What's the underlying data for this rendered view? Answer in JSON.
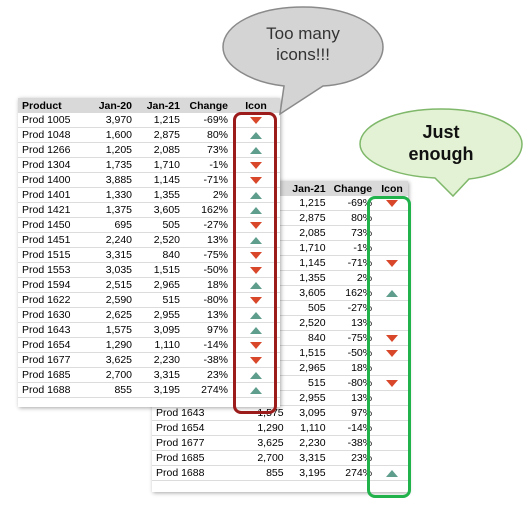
{
  "table_front": {
    "columns": [
      "Product",
      "Jan-20",
      "Jan-21",
      "Change",
      "Icon"
    ],
    "rows": [
      {
        "product": "Prod 1005",
        "jan20": "3,970",
        "jan21": "1,215",
        "change": "-69%",
        "icon": "down"
      },
      {
        "product": "Prod 1048",
        "jan20": "1,600",
        "jan21": "2,875",
        "change": "80%",
        "icon": "up"
      },
      {
        "product": "Prod 1266",
        "jan20": "1,205",
        "jan21": "2,085",
        "change": "73%",
        "icon": "up"
      },
      {
        "product": "Prod 1304",
        "jan20": "1,735",
        "jan21": "1,710",
        "change": "-1%",
        "icon": "down"
      },
      {
        "product": "Prod 1400",
        "jan20": "3,885",
        "jan21": "1,145",
        "change": "-71%",
        "icon": "down"
      },
      {
        "product": "Prod 1401",
        "jan20": "1,330",
        "jan21": "1,355",
        "change": "2%",
        "icon": "up"
      },
      {
        "product": "Prod 1421",
        "jan20": "1,375",
        "jan21": "3,605",
        "change": "162%",
        "icon": "up"
      },
      {
        "product": "Prod 1450",
        "jan20": "695",
        "jan21": "505",
        "change": "-27%",
        "icon": "down"
      },
      {
        "product": "Prod 1451",
        "jan20": "2,240",
        "jan21": "2,520",
        "change": "13%",
        "icon": "up"
      },
      {
        "product": "Prod 1515",
        "jan20": "3,315",
        "jan21": "840",
        "change": "-75%",
        "icon": "down"
      },
      {
        "product": "Prod 1553",
        "jan20": "3,035",
        "jan21": "1,515",
        "change": "-50%",
        "icon": "down"
      },
      {
        "product": "Prod 1594",
        "jan20": "2,515",
        "jan21": "2,965",
        "change": "18%",
        "icon": "up"
      },
      {
        "product": "Prod 1622",
        "jan20": "2,590",
        "jan21": "515",
        "change": "-80%",
        "icon": "down"
      },
      {
        "product": "Prod 1630",
        "jan20": "2,625",
        "jan21": "2,955",
        "change": "13%",
        "icon": "up"
      },
      {
        "product": "Prod 1643",
        "jan20": "1,575",
        "jan21": "3,095",
        "change": "97%",
        "icon": "up"
      },
      {
        "product": "Prod 1654",
        "jan20": "1,290",
        "jan21": "1,110",
        "change": "-14%",
        "icon": "down"
      },
      {
        "product": "Prod 1677",
        "jan20": "3,625",
        "jan21": "2,230",
        "change": "-38%",
        "icon": "down"
      },
      {
        "product": "Prod 1685",
        "jan20": "2,700",
        "jan21": "3,315",
        "change": "23%",
        "icon": "up"
      },
      {
        "product": "Prod 1688",
        "jan20": "855",
        "jan21": "3,195",
        "change": "274%",
        "icon": "up"
      }
    ]
  },
  "table_back": {
    "columns": [
      "Jan-21",
      "Change",
      "Icon"
    ],
    "rows_top": [
      {
        "jan21": "1,215",
        "change": "-69%",
        "icon": "down"
      },
      {
        "jan21": "2,875",
        "change": "80%",
        "icon": ""
      },
      {
        "jan21": "2,085",
        "change": "73%",
        "icon": ""
      },
      {
        "jan21": "1,710",
        "change": "-1%",
        "icon": ""
      },
      {
        "jan21": "1,145",
        "change": "-71%",
        "icon": "down"
      },
      {
        "jan21": "1,355",
        "change": "2%",
        "icon": ""
      },
      {
        "jan21": "3,605",
        "change": "162%",
        "icon": "up"
      },
      {
        "jan21": "505",
        "change": "-27%",
        "icon": ""
      },
      {
        "jan21": "2,520",
        "change": "13%",
        "icon": ""
      },
      {
        "jan21": "840",
        "change": "-75%",
        "icon": "down"
      },
      {
        "jan21": "1,515",
        "change": "-50%",
        "icon": "down"
      },
      {
        "jan21": "2,965",
        "change": "18%",
        "icon": ""
      },
      {
        "jan21": "515",
        "change": "-80%",
        "icon": "down"
      },
      {
        "jan21": "2,955",
        "change": "13%",
        "icon": ""
      }
    ],
    "rows_full": [
      {
        "product": "Prod 1643",
        "jan20": "1,575",
        "jan21": "3,095",
        "change": "97%",
        "icon": ""
      },
      {
        "product": "Prod 1654",
        "jan20": "1,290",
        "jan21": "1,110",
        "change": "-14%",
        "icon": ""
      },
      {
        "product": "Prod 1677",
        "jan20": "3,625",
        "jan21": "2,230",
        "change": "-38%",
        "icon": ""
      },
      {
        "product": "Prod 1685",
        "jan20": "2,700",
        "jan21": "3,315",
        "change": "23%",
        "icon": ""
      },
      {
        "product": "Prod 1688",
        "jan20": "855",
        "jan21": "3,195",
        "change": "274%",
        "icon": "up"
      }
    ]
  },
  "bubble_too_many": {
    "text": "Too many\nicons!!!",
    "fill": "#d4d4d4"
  },
  "bubble_just_enough": {
    "text": "Just\nenough",
    "fill": "#e3f2d4"
  },
  "colors": {
    "down_icon": "#d9472b",
    "up_icon": "#5f9e8c",
    "too_many_outline": "#9c1b1b",
    "just_enough_outline": "#22b24c"
  }
}
